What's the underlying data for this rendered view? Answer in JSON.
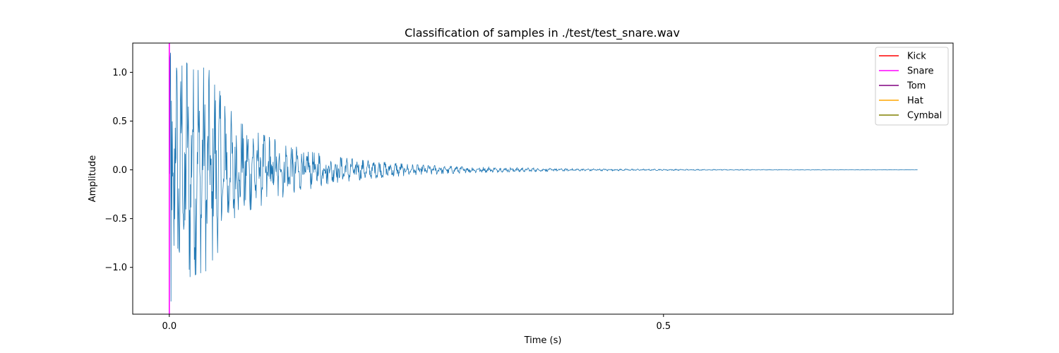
{
  "chart_data": {
    "type": "line",
    "title": "Classification of samples in ./test/test_snare.wav",
    "xlabel": "Time (s)",
    "ylabel": "Amplitude",
    "xlim": [
      -0.037,
      0.793
    ],
    "ylim": [
      -1.48,
      1.3
    ],
    "x_ticks": [
      0.0,
      0.5
    ],
    "x_tick_labels": [
      "0.0",
      "0.5"
    ],
    "y_ticks": [
      1.0,
      0.5,
      0.0,
      -0.5,
      -1.0
    ],
    "y_tick_labels": [
      "1.0",
      "0.5",
      "0.0",
      "−0.5",
      "−1.0"
    ],
    "grid": false,
    "legend_position": "top-right",
    "waveform": {
      "color": "#1f77b4",
      "duration_s": 0.757,
      "decay_envelope": [
        {
          "t": 0.0,
          "amp": 1.15
        },
        {
          "t": 0.02,
          "amp": 1.05
        },
        {
          "t": 0.04,
          "amp": 0.98
        },
        {
          "t": 0.06,
          "amp": 0.6
        },
        {
          "t": 0.08,
          "amp": 0.4
        },
        {
          "t": 0.12,
          "amp": 0.25
        },
        {
          "t": 0.16,
          "amp": 0.14
        },
        {
          "t": 0.2,
          "amp": 0.09
        },
        {
          "t": 0.25,
          "amp": 0.05
        },
        {
          "t": 0.3,
          "amp": 0.03
        },
        {
          "t": 0.4,
          "amp": 0.012
        },
        {
          "t": 0.55,
          "amp": 0.004
        },
        {
          "t": 0.757,
          "amp": 0.001
        }
      ]
    },
    "onsets": [
      {
        "label": "Snare",
        "time": 0.0,
        "color": "#ff00ff"
      }
    ],
    "legend": [
      {
        "label": "Kick",
        "color": "#ff0000"
      },
      {
        "label": "Snare",
        "color": "#ff00ff"
      },
      {
        "label": "Tom",
        "color": "#800080"
      },
      {
        "label": "Hat",
        "color": "#ffa500"
      },
      {
        "label": "Cymbal",
        "color": "#808000"
      }
    ]
  }
}
